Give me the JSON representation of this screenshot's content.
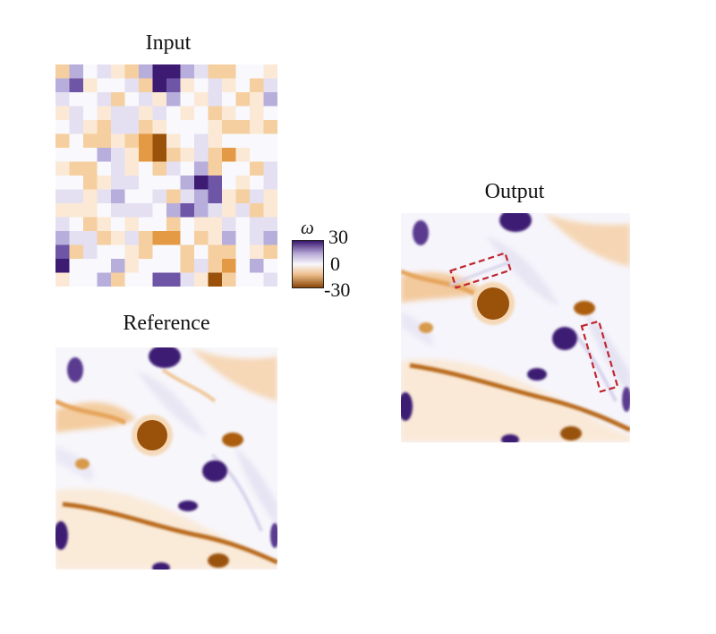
{
  "panels": {
    "input": {
      "title": "Input"
    },
    "reference": {
      "title": "Reference"
    },
    "output": {
      "title": "Output"
    }
  },
  "colorbar": {
    "symbol": "ω",
    "max_label": "30",
    "mid_label": "0",
    "min_label": "-30",
    "colors": {
      "max": "#3a1670",
      "mid": "#f8f7fb",
      "min": "#8a4607"
    }
  },
  "annotations": {
    "highlight_color": "#c0262f",
    "highlight_style": "dashed",
    "highlight_count": 2
  }
}
